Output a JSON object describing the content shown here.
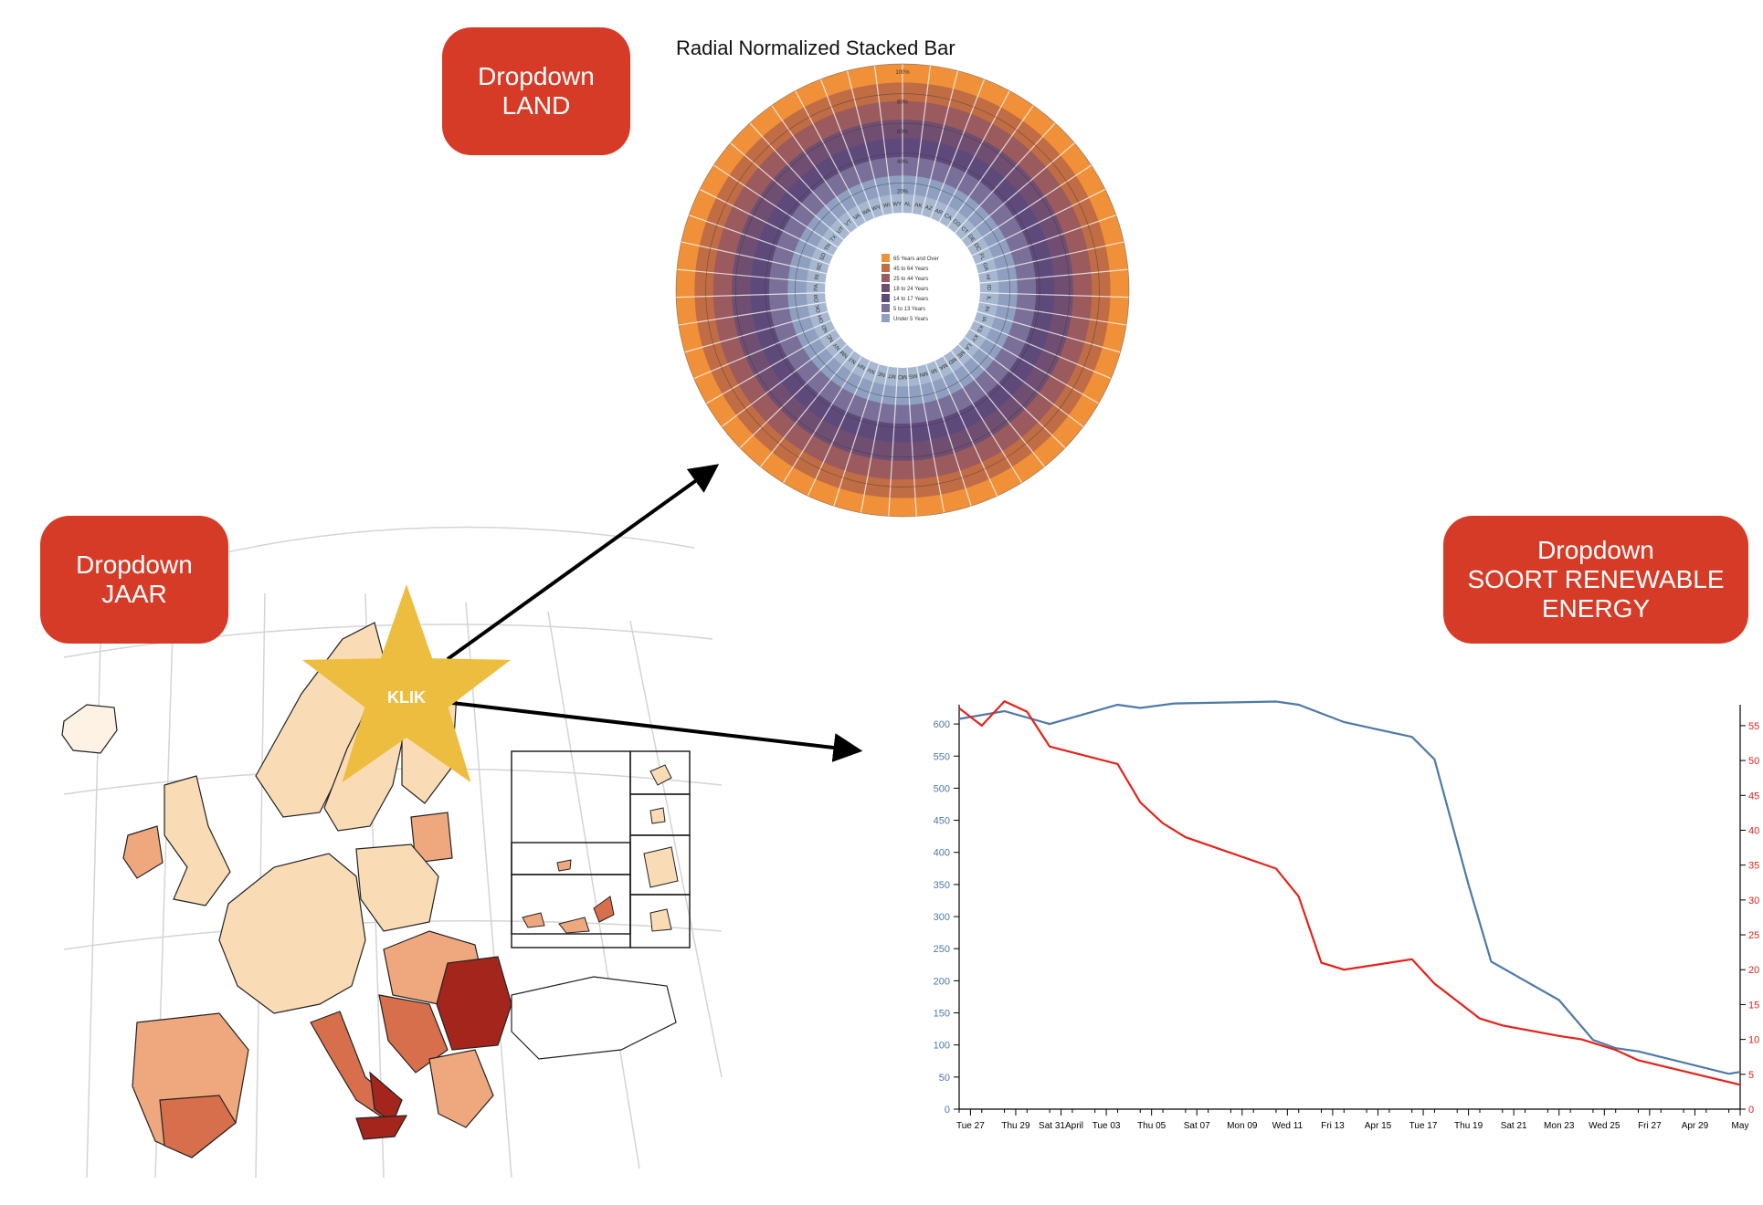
{
  "dropdowns": {
    "land": {
      "line1": "Dropdown",
      "line2": "LAND"
    },
    "jaar": {
      "line1": "Dropdown",
      "line2": "JAAR"
    },
    "energy": {
      "line1": "Dropdown",
      "line2": "SOORT RENEWABLE",
      "line3": "ENERGY"
    }
  },
  "star_label": "KLIK",
  "colors": {
    "button": "#d63b27",
    "star": "#ecbd3e",
    "line_blue": "#4e79a7",
    "line_red": "#e3231b",
    "radial_layers": [
      "#a6b7cf",
      "#8f9fc0",
      "#7a6f98",
      "#5e4a7a",
      "#6f4e72",
      "#9a5a5e",
      "#c06c44",
      "#f0913a"
    ],
    "map_choropleth": [
      "#fdf2e3",
      "#f9dcb5",
      "#efa87d",
      "#d76f4c",
      "#a3251c"
    ]
  },
  "icons": [
    "europe-map",
    "radial-chart",
    "line-chart",
    "star-icon",
    "arrow-icon"
  ],
  "radial_chart": {
    "title": "Radial Normalized Stacked Bar",
    "legend": [
      "65 Years and Over",
      "45 to 64 Years",
      "25 to 44 Years",
      "18 to 24 Years",
      "14 to 17 Years",
      "5 to 13 Years",
      "Under 5 Years"
    ],
    "ring_labels": [
      "100%",
      "80%",
      "60%",
      "40%",
      "20%"
    ],
    "states": [
      "AL",
      "AK",
      "AZ",
      "AR",
      "CA",
      "CO",
      "CT",
      "DE",
      "DC",
      "FL",
      "GA",
      "HI",
      "ID",
      "IL",
      "IN",
      "IA",
      "KS",
      "KY",
      "LA",
      "ME",
      "MD",
      "MA",
      "MI",
      "MN",
      "MS",
      "MO",
      "MT",
      "NE",
      "NV",
      "NH",
      "NJ",
      "NM",
      "NY",
      "NC",
      "ND",
      "OH",
      "OK",
      "OR",
      "PA",
      "RI",
      "SC",
      "SD",
      "TN",
      "TX",
      "UT",
      "VT",
      "VA",
      "WA",
      "WV",
      "WI",
      "WY"
    ]
  },
  "chart_data": {
    "type": "line",
    "x_tick_labels": [
      "Tue 27",
      "Thu 29",
      "Sat 31April",
      "Tue 03",
      "Thu 05",
      "Sat 07",
      "Mon 09",
      "Wed 11",
      "Fri 13",
      "Apr 15",
      "Tue 17",
      "Thu 19",
      "Sat 21",
      "Mon 23",
      "Wed 25",
      "Fri 27",
      "Apr 29",
      "May"
    ],
    "x_tick_positions": [
      0.5,
      2.5,
      4.5,
      6.5,
      8.5,
      10.5,
      12.5,
      14.5,
      16.5,
      18.5,
      20.5,
      22.5,
      24.5,
      26.5,
      28.5,
      30.5,
      32.5,
      34.5
    ],
    "xlim": [
      0,
      34.5
    ],
    "left_axis": {
      "ticks": [
        0,
        50,
        100,
        150,
        200,
        250,
        300,
        350,
        400,
        450,
        500,
        550,
        600
      ],
      "ylim": [
        0,
        630
      ]
    },
    "right_axis": {
      "ticks": [
        0,
        5,
        10,
        15,
        20,
        25,
        30,
        35,
        40,
        45,
        50,
        55
      ],
      "ylim": [
        0,
        58
      ]
    },
    "series": [
      {
        "axis": "left",
        "x": [
          0,
          2,
          4,
          7,
          8,
          9.5,
          14,
          15,
          17,
          20,
          21,
          22.5,
          23.5,
          26.5,
          28,
          29,
          30,
          34,
          34.5
        ],
        "values": [
          608,
          620,
          600,
          630,
          625,
          632,
          635,
          630,
          603,
          580,
          545,
          350,
          230,
          170,
          108,
          95,
          90,
          55,
          58
        ]
      },
      {
        "axis": "right",
        "x": [
          0,
          1,
          2,
          3,
          4,
          7,
          8,
          9,
          10,
          14,
          15,
          16,
          17,
          20,
          21,
          22,
          23,
          24,
          26.5,
          27.5,
          29,
          30,
          34.5
        ],
        "values": [
          57.5,
          55,
          58.5,
          57,
          52,
          49.5,
          44,
          41,
          39,
          34.5,
          30.5,
          21,
          20,
          21.5,
          18,
          15.5,
          13,
          12,
          10.5,
          10,
          8.5,
          7,
          3.5
        ]
      }
    ]
  }
}
